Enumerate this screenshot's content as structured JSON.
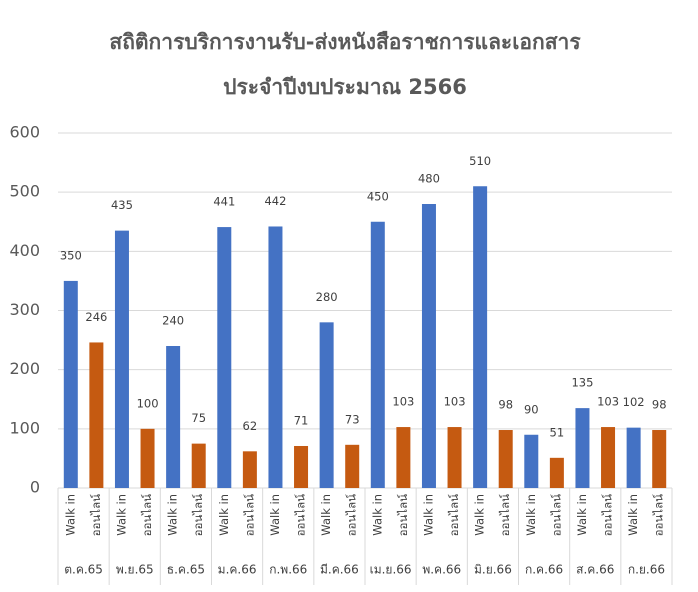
{
  "chart_data": {
    "type": "bar",
    "title": [
      "สถิติการบริการงานรับ-ส่งหนังสือราชการและเอกสาร",
      "ประจำปีงบประมาณ 2566"
    ],
    "categories": [
      "ต.ค.65",
      "พ.ย.65",
      "ธ.ค.65",
      "ม.ค.66",
      "ก.พ.66",
      "มี.ค.66",
      "เม.ย.66",
      "พ.ค.66",
      "มิ.ย.66",
      "ก.ค.66",
      "ส.ค.66",
      "ก.ย.66"
    ],
    "series": [
      {
        "name": "Walk in",
        "color": "#4472c4",
        "values": [
          350,
          435,
          240,
          441,
          442,
          280,
          450,
          480,
          510,
          90,
          135,
          102
        ]
      },
      {
        "name": "ออนไลน์",
        "color": "#c55a11",
        "values": [
          246,
          100,
          75,
          62,
          71,
          73,
          103,
          103,
          98,
          51,
          103,
          98
        ]
      }
    ],
    "ylim": [
      0,
      600
    ],
    "yticks": [
      0,
      100,
      200,
      300,
      400,
      500,
      600
    ],
    "grid": true
  }
}
